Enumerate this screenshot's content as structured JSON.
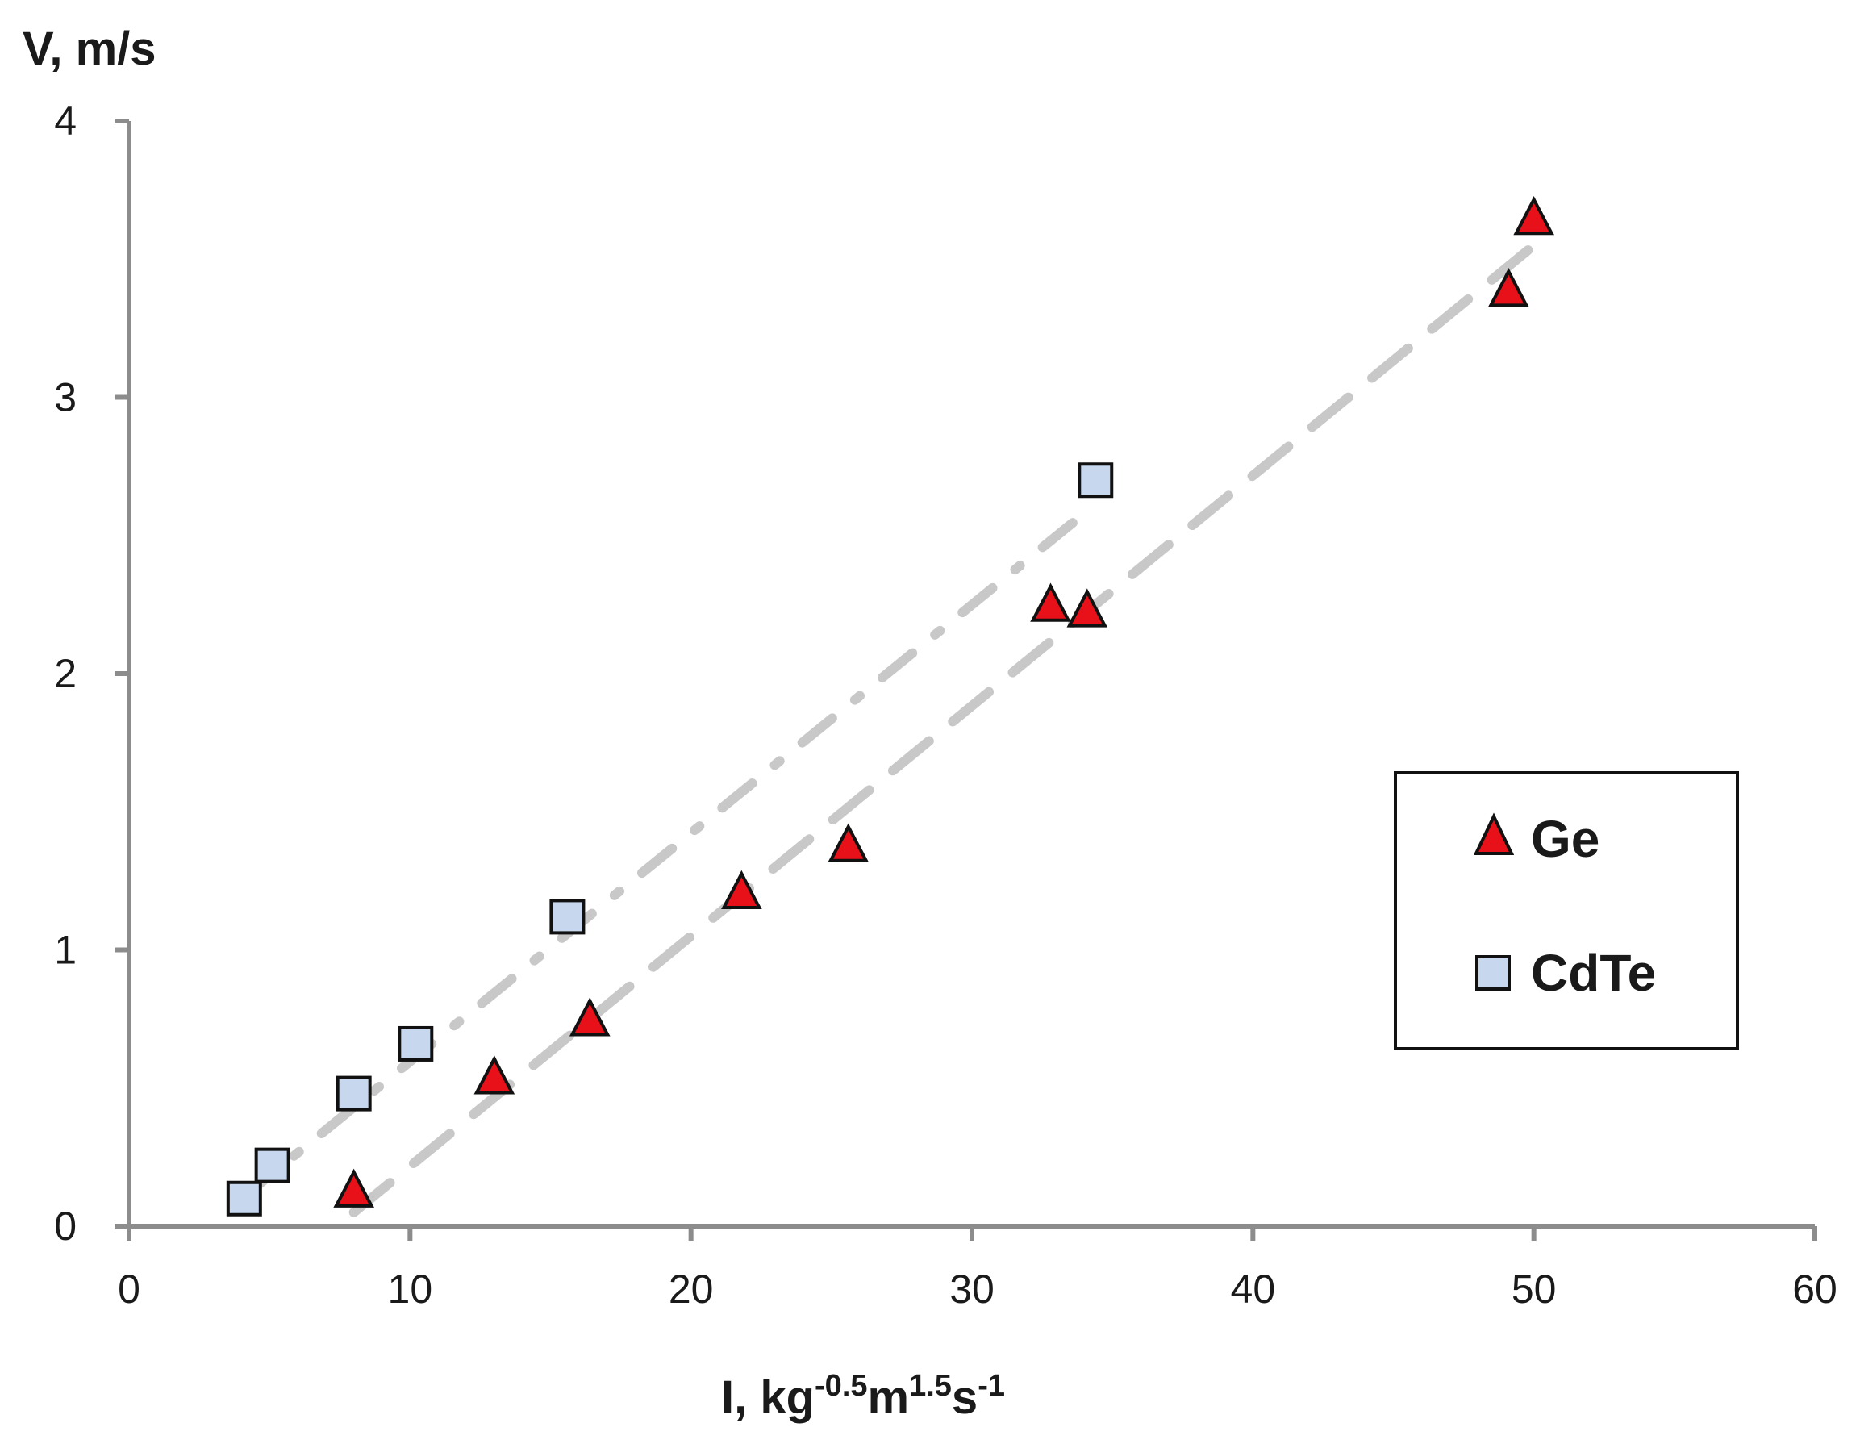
{
  "chart_data": {
    "type": "scatter",
    "title": "",
    "ylabel": "V, m/s",
    "xlabel": {
      "base": "I, kg",
      "exp1": "-0.5",
      "mid1": "m",
      "exp2": "1.5",
      "mid2": "s",
      "exp3": "-1"
    },
    "xlim": [
      0,
      60
    ],
    "ylim": [
      0,
      4
    ],
    "x_ticks": [
      "0",
      "10",
      "20",
      "30",
      "40",
      "50",
      "60"
    ],
    "y_ticks": [
      "0",
      "1",
      "2",
      "3",
      "4"
    ],
    "grid": false,
    "legend_position": "right",
    "series": [
      {
        "name": "Ge",
        "marker": "triangle",
        "color": "#e8111a",
        "x": [
          8.0,
          13.0,
          16.4,
          21.8,
          25.6,
          32.8,
          34.1,
          49.1,
          50.0
        ],
        "y": [
          0.12,
          0.53,
          0.74,
          1.2,
          1.37,
          2.24,
          2.22,
          3.38,
          3.64
        ]
      },
      {
        "name": "CdTe",
        "marker": "square",
        "color": "#c6d7ee",
        "x": [
          4.1,
          5.1,
          8.0,
          10.2,
          15.6,
          34.4
        ],
        "y": [
          0.1,
          0.22,
          0.48,
          0.66,
          1.12,
          2.7
        ]
      }
    ],
    "trendlines": [
      {
        "series": "Ge",
        "style": "dashed",
        "color": "#c8c8c8",
        "x": [
          8.0,
          50.0
        ],
        "y": [
          0.05,
          3.55
        ]
      },
      {
        "series": "CdTe",
        "style": "dash-dot",
        "color": "#c8c8c8",
        "x": [
          4.0,
          34.0
        ],
        "y": [
          0.1,
          2.58
        ]
      }
    ]
  }
}
